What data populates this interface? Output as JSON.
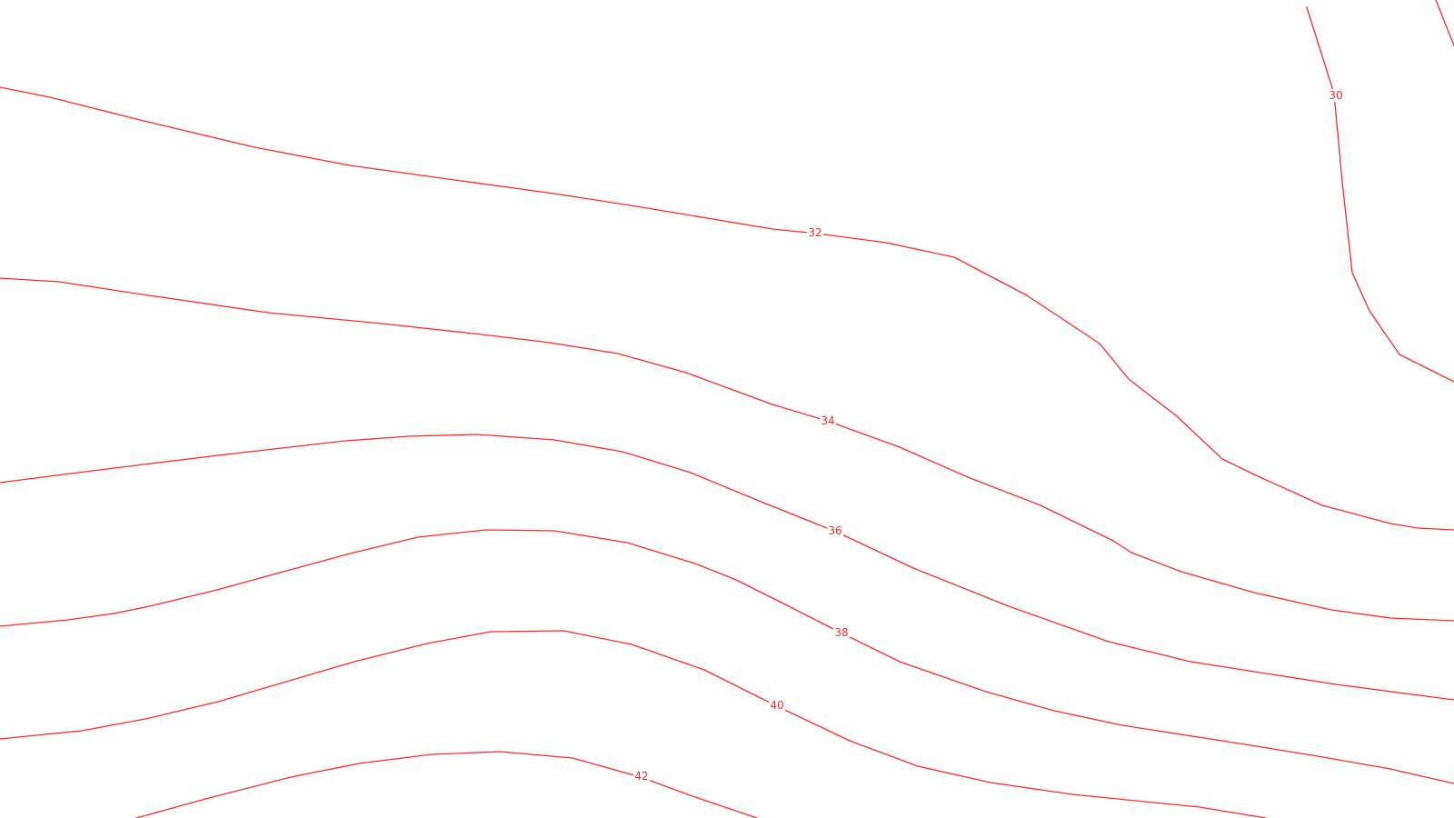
{
  "map": {
    "background": "#ffffff",
    "line_color": "#ff2a2a",
    "contours": [
      {
        "id": "contour-30",
        "label": "30"
      },
      {
        "id": "contour-30-edge",
        "label": ""
      },
      {
        "id": "contour-32",
        "label": "32"
      },
      {
        "id": "contour-34",
        "label": "34"
      },
      {
        "id": "contour-36",
        "label": "36"
      },
      {
        "id": "contour-38",
        "label": "38"
      },
      {
        "id": "contour-40",
        "label": "40"
      },
      {
        "id": "contour-42",
        "label": "42"
      }
    ]
  }
}
